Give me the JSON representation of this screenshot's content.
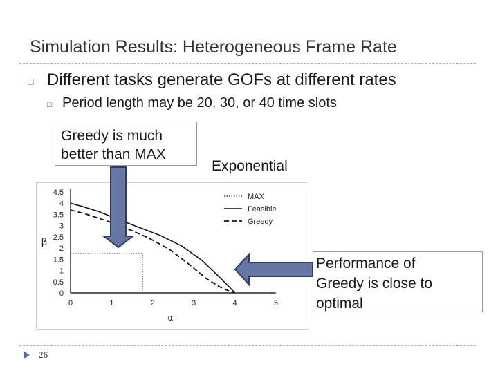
{
  "slide": {
    "title": "Simulation Results: Heterogeneous Frame Rate",
    "bullet1": "Different tasks generate GOFs at different rates",
    "bullet2": "Period length may be 20, 30, or 40 time slots",
    "callout_greedy": [
      "Greedy is much",
      "better than MAX"
    ],
    "callout_exponential": "Exponential",
    "callout_performance": [
      "Performance of",
      "Greedy is close to",
      "optimal"
    ],
    "page_number": "26",
    "bullet_icon": "square-bullet-icon"
  },
  "colors": {
    "arrow_fill": "#6677a6",
    "arrow_stroke": "#2f3d66",
    "bullet": "#5a6fa0"
  },
  "chart_data": {
    "type": "line",
    "xlabel": "α",
    "ylabel": "β",
    "xlim": [
      0,
      5
    ],
    "ylim": [
      0,
      4.5
    ],
    "x_ticks": [
      "0",
      "1",
      "2",
      "3",
      "4",
      "5"
    ],
    "y_ticks": [
      "0",
      "0.5",
      "1",
      "1.5",
      "2",
      "2.5",
      "3",
      "3.5",
      "4",
      "4.5"
    ],
    "legend_position": "top-right",
    "grid": false,
    "series": [
      {
        "name": "MAX",
        "style": "dotted",
        "x": [
          0,
          1.75,
          1.75
        ],
        "y": [
          1.75,
          1.75,
          0
        ]
      },
      {
        "name": "Feasible",
        "style": "solid",
        "x": [
          0,
          0.3,
          0.7,
          1.2,
          1.7,
          2.2,
          2.7,
          3.2,
          3.6,
          3.9,
          4.0
        ],
        "y": [
          4.0,
          3.85,
          3.62,
          3.25,
          2.9,
          2.55,
          2.1,
          1.45,
          0.75,
          0.2,
          0
        ]
      },
      {
        "name": "Greedy",
        "style": "dashed",
        "x": [
          0,
          0.4,
          0.9,
          1.4,
          1.9,
          2.4,
          2.9,
          3.3,
          3.6,
          3.9,
          4.0
        ],
        "y": [
          3.7,
          3.5,
          3.2,
          2.85,
          2.45,
          1.95,
          1.25,
          0.65,
          0.3,
          0.05,
          0
        ]
      }
    ]
  }
}
